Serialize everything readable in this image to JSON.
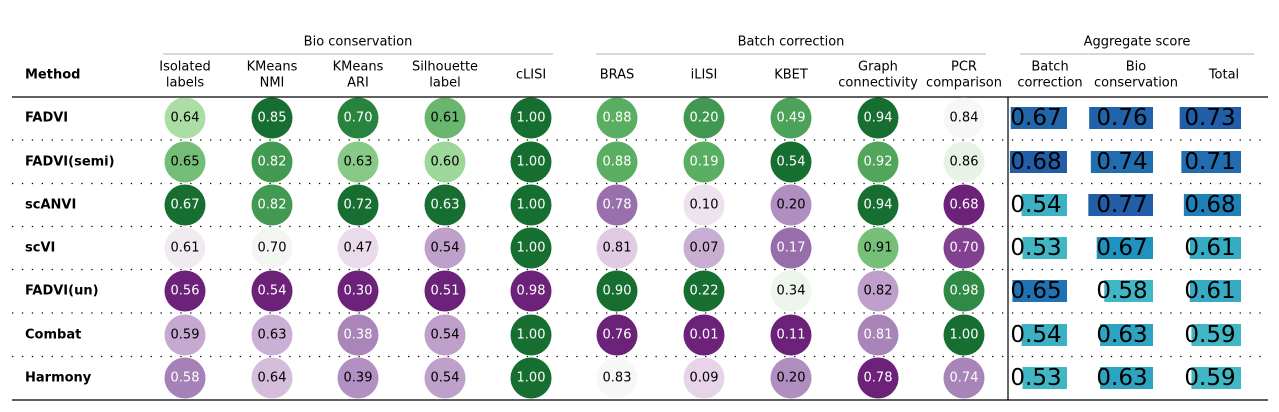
{
  "chart_data": {
    "type": "table",
    "method_header": "Method",
    "groups": [
      {
        "label": "Bio conservation",
        "columns": [
          "Isolated\nlabels",
          "KMeans\nNMI",
          "KMeans\nARI",
          "Silhouette\nlabel",
          "cLISI"
        ]
      },
      {
        "label": "Batch correction",
        "columns": [
          "BRAS",
          "iLISI",
          "KBET",
          "Graph\nconnectivity",
          "PCR\ncomparison"
        ]
      },
      {
        "label": "Aggregate score",
        "columns": [
          "Batch\ncorrection",
          "Bio\nconservation",
          "Total"
        ]
      }
    ],
    "methods": [
      "FADVI",
      "FADVI(semi)",
      "scANVI",
      "scVI",
      "FADVI(un)",
      "Combat",
      "Harmony"
    ],
    "metric_columns": [
      "Isolated labels",
      "KMeans NMI",
      "KMeans ARI",
      "Silhouette label",
      "cLISI",
      "BRAS",
      "iLISI",
      "KBET",
      "Graph connectivity",
      "PCR comparison"
    ],
    "values": [
      [
        0.64,
        0.85,
        0.7,
        0.61,
        1.0,
        0.88,
        0.2,
        0.49,
        0.94,
        0.84
      ],
      [
        0.65,
        0.82,
        0.63,
        0.6,
        1.0,
        0.88,
        0.19,
        0.54,
        0.92,
        0.86
      ],
      [
        0.67,
        0.82,
        0.72,
        0.63,
        1.0,
        0.78,
        0.1,
        0.2,
        0.94,
        0.68
      ],
      [
        0.61,
        0.7,
        0.47,
        0.54,
        1.0,
        0.81,
        0.07,
        0.17,
        0.91,
        0.7
      ],
      [
        0.56,
        0.54,
        0.3,
        0.51,
        0.98,
        0.9,
        0.22,
        0.34,
        0.82,
        0.98
      ],
      [
        0.59,
        0.63,
        0.38,
        0.54,
        1.0,
        0.76,
        0.01,
        0.11,
        0.81,
        1.0
      ],
      [
        0.58,
        0.64,
        0.39,
        0.54,
        1.0,
        0.83,
        0.09,
        0.2,
        0.78,
        0.74
      ]
    ],
    "value_labels": [
      [
        "0.64",
        "0.85",
        "0.70",
        "0.61",
        "1.00",
        "0.88",
        "0.20",
        "0.49",
        "0.94",
        "0.84"
      ],
      [
        "0.65",
        "0.82",
        "0.63",
        "0.60",
        "1.00",
        "0.88",
        "0.19",
        "0.54",
        "0.92",
        "0.86"
      ],
      [
        "0.67",
        "0.82",
        "0.72",
        "0.63",
        "1.00",
        "0.78",
        "0.10",
        "0.20",
        "0.94",
        "0.68"
      ],
      [
        "0.61",
        "0.70",
        "0.47",
        "0.54",
        "1.00",
        "0.81",
        "0.07",
        "0.17",
        "0.91",
        "0.70"
      ],
      [
        "0.56",
        "0.54",
        "0.30",
        "0.51",
        "0.98",
        "0.90",
        "0.22",
        "0.34",
        "0.82",
        "0.98"
      ],
      [
        "0.59",
        "0.63",
        "0.38",
        "0.54",
        "1.00",
        "0.76",
        "0.01",
        "0.11",
        "0.81",
        "1.00"
      ],
      [
        "0.58",
        "0.64",
        "0.39",
        "0.54",
        "1.00",
        "0.83",
        "0.09",
        "0.20",
        "0.78",
        "0.74"
      ]
    ],
    "aggregate_columns": [
      "Batch correction",
      "Bio conservation",
      "Total"
    ],
    "aggregate_values": [
      [
        0.67,
        0.76,
        0.73
      ],
      [
        0.68,
        0.74,
        0.71
      ],
      [
        0.54,
        0.77,
        0.68
      ],
      [
        0.53,
        0.67,
        0.61
      ],
      [
        0.65,
        0.58,
        0.61
      ],
      [
        0.54,
        0.63,
        0.59
      ],
      [
        0.53,
        0.63,
        0.59
      ]
    ],
    "aggregate_labels": [
      [
        "0.67",
        "0.76",
        "0.73"
      ],
      [
        "0.68",
        "0.74",
        "0.71"
      ],
      [
        "0.54",
        "0.77",
        "0.68"
      ],
      [
        "0.53",
        "0.67",
        "0.61"
      ],
      [
        "0.65",
        "0.58",
        "0.61"
      ],
      [
        "0.54",
        "0.63",
        "0.59"
      ],
      [
        "0.53",
        "0.63",
        "0.59"
      ]
    ],
    "colormaps": {
      "bio_and_batch_circles": "PRGn (purple = low, green = high)",
      "aggregate_bars": "YlGnBu"
    }
  }
}
